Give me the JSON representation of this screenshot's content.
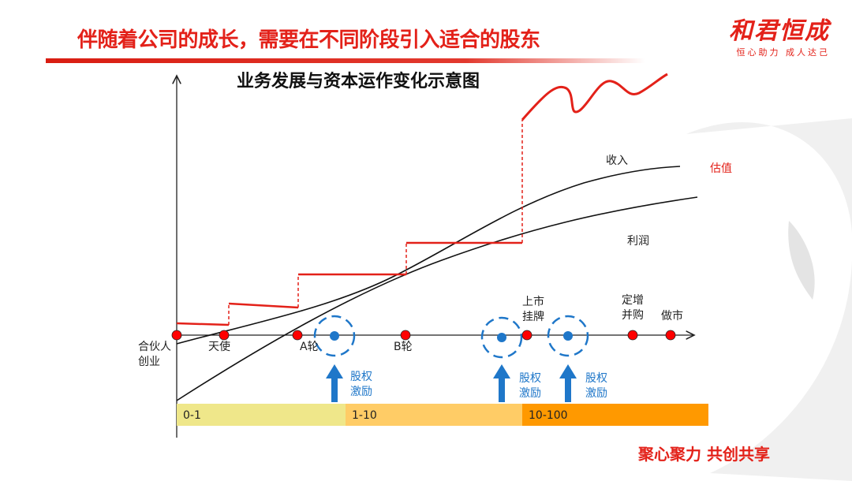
{
  "slide": {
    "title": "伴随着公司的成长，需要在不同阶段引入适合的股东",
    "footer": "聚心聚力 共创共享"
  },
  "brand": {
    "name": "和君恒成",
    "slogan": "恒心助力 成人达己"
  },
  "diagram": {
    "title": "业务发展与资本运作变化示意图",
    "curves": {
      "revenue_label": "收入",
      "profit_label": "利润",
      "valuation_label": "估值"
    },
    "milestones": [
      {
        "label": "合伙人\n创业"
      },
      {
        "label": "天使"
      },
      {
        "label": "A轮"
      },
      {
        "label": "B轮"
      },
      {
        "label": "上市\n挂牌"
      },
      {
        "label": "定增\n并购"
      },
      {
        "label": "做市"
      }
    ],
    "incentives": [
      {
        "label": "股权\n激励"
      },
      {
        "label": "股权\n激励"
      },
      {
        "label": "股权\n激励"
      }
    ],
    "stages": [
      {
        "label": "0-1",
        "color": "#efe78a"
      },
      {
        "label": "1-10",
        "color": "#ffcc66"
      },
      {
        "label": "10-100",
        "color": "#ff9900"
      }
    ],
    "colors": {
      "accent": "#e32119",
      "incentive": "#1f77c9",
      "milestone_fill": "#ff0000"
    }
  }
}
